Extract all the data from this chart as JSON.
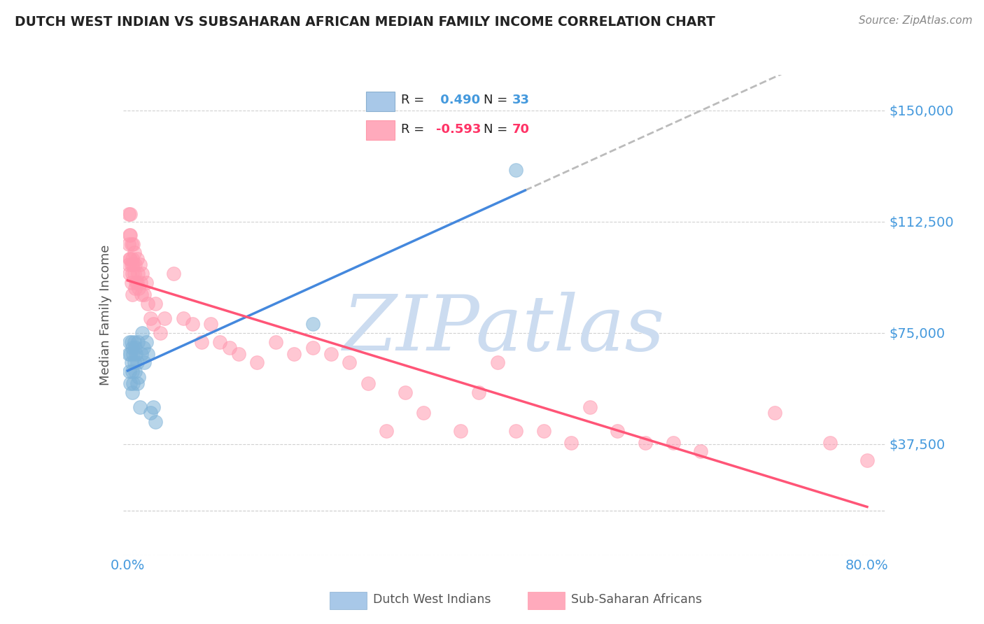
{
  "title": "DUTCH WEST INDIAN VS SUBSAHARAN AFRICAN MEDIAN FAMILY INCOME CORRELATION CHART",
  "source_text": "Source: ZipAtlas.com",
  "ylabel": "Median Family Income",
  "yticks": [
    0,
    37500,
    75000,
    112500,
    150000
  ],
  "ytick_labels": [
    "",
    "$37,500",
    "$75,000",
    "$112,500",
    "$150,000"
  ],
  "xlim": [
    -0.005,
    0.82
  ],
  "ylim": [
    15000,
    162000
  ],
  "xtick_positions": [
    0.0,
    0.1,
    0.2,
    0.3,
    0.4,
    0.5,
    0.6,
    0.7,
    0.8
  ],
  "xtick_labels": [
    "0.0%",
    "",
    "",
    "",
    "",
    "",
    "",
    "",
    "80.0%"
  ],
  "blue_color": "#a8c8e8",
  "pink_color": "#ffaabc",
  "blue_scatter_color": "#7fb3d8",
  "pink_scatter_color": "#ff99b0",
  "blue_line_color": "#4488dd",
  "pink_line_color": "#ff5577",
  "blue_label": "Dutch West Indians",
  "pink_label": "Sub-Saharan Africans",
  "R_blue": 0.49,
  "N_blue": 33,
  "R_pink": -0.593,
  "N_pink": 70,
  "blue_x": [
    0.001,
    0.002,
    0.002,
    0.003,
    0.003,
    0.004,
    0.004,
    0.005,
    0.005,
    0.005,
    0.006,
    0.006,
    0.007,
    0.007,
    0.008,
    0.008,
    0.009,
    0.01,
    0.01,
    0.011,
    0.012,
    0.013,
    0.015,
    0.016,
    0.017,
    0.018,
    0.02,
    0.022,
    0.025,
    0.028,
    0.03,
    0.2,
    0.42
  ],
  "blue_y": [
    68000,
    72000,
    62000,
    68000,
    58000,
    72000,
    65000,
    70000,
    62000,
    55000,
    68000,
    58000,
    72000,
    65000,
    70000,
    62000,
    68000,
    65000,
    58000,
    72000,
    60000,
    50000,
    68000,
    75000,
    70000,
    65000,
    72000,
    68000,
    48000,
    50000,
    45000,
    78000,
    130000
  ],
  "pink_x": [
    0.001,
    0.001,
    0.001,
    0.002,
    0.002,
    0.002,
    0.003,
    0.003,
    0.003,
    0.004,
    0.004,
    0.004,
    0.005,
    0.005,
    0.005,
    0.006,
    0.006,
    0.007,
    0.007,
    0.008,
    0.008,
    0.009,
    0.01,
    0.01,
    0.011,
    0.012,
    0.013,
    0.014,
    0.015,
    0.016,
    0.018,
    0.02,
    0.022,
    0.025,
    0.028,
    0.03,
    0.035,
    0.04,
    0.05,
    0.06,
    0.07,
    0.08,
    0.09,
    0.1,
    0.11,
    0.12,
    0.14,
    0.16,
    0.18,
    0.2,
    0.22,
    0.24,
    0.26,
    0.28,
    0.3,
    0.32,
    0.36,
    0.38,
    0.4,
    0.42,
    0.45,
    0.48,
    0.5,
    0.53,
    0.56,
    0.59,
    0.62,
    0.7,
    0.76,
    0.8
  ],
  "pink_y": [
    115000,
    105000,
    98000,
    108000,
    100000,
    95000,
    115000,
    108000,
    100000,
    105000,
    98000,
    92000,
    100000,
    95000,
    88000,
    105000,
    98000,
    102000,
    95000,
    98000,
    90000,
    92000,
    100000,
    92000,
    95000,
    90000,
    98000,
    92000,
    88000,
    95000,
    88000,
    92000,
    85000,
    80000,
    78000,
    85000,
    75000,
    80000,
    95000,
    80000,
    78000,
    72000,
    78000,
    72000,
    70000,
    68000,
    65000,
    72000,
    68000,
    70000,
    68000,
    65000,
    58000,
    42000,
    55000,
    48000,
    42000,
    55000,
    65000,
    42000,
    42000,
    38000,
    50000,
    42000,
    38000,
    38000,
    35000,
    48000,
    38000,
    32000
  ],
  "watermark": "ZIPatlas",
  "watermark_color": "#ccdcf0",
  "grid_color": "#cccccc",
  "title_color": "#222222",
  "axis_label_color": "#555555",
  "tick_label_color": "#4499dd",
  "source_color": "#888888",
  "legend_R_N_color": "#222222",
  "legend_blue_val_color": "#4499dd",
  "legend_pink_val_color": "#ff3366",
  "blue_line_start_x": 0.0,
  "blue_line_end_x": 0.43,
  "pink_line_start_x": 0.0,
  "pink_line_end_x": 0.8
}
